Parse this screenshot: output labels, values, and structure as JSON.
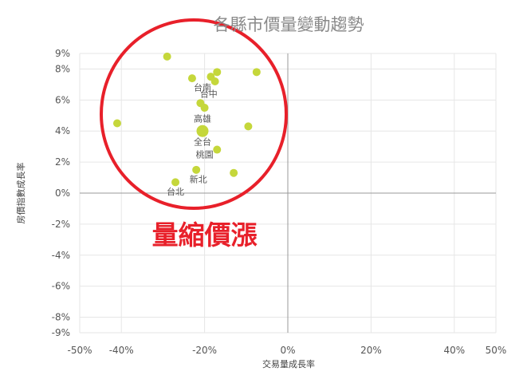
{
  "chart_data": {
    "type": "scatter",
    "title": "各縣市價量變動趨勢",
    "xlabel": "交易量成長率",
    "ylabel": "房價指數成長率",
    "xlim": [
      -0.5,
      0.5
    ],
    "ylim": [
      -0.09,
      0.09
    ],
    "x_ticks": [
      {
        "value": -0.5,
        "label": "-50%"
      },
      {
        "value": -0.4,
        "label": "-40%"
      },
      {
        "value": -0.2,
        "label": "-20%"
      },
      {
        "value": 0.0,
        "label": "0%"
      },
      {
        "value": 0.2,
        "label": "20%"
      },
      {
        "value": 0.4,
        "label": "40%"
      },
      {
        "value": 0.5,
        "label": "50%"
      }
    ],
    "y_ticks": [
      {
        "value": 0.09,
        "label": "9%"
      },
      {
        "value": 0.08,
        "label": "8%"
      },
      {
        "value": 0.06,
        "label": "6%"
      },
      {
        "value": 0.04,
        "label": "4%"
      },
      {
        "value": 0.02,
        "label": "2%"
      },
      {
        "value": 0.0,
        "label": "0%"
      },
      {
        "value": -0.02,
        "label": "-2%"
      },
      {
        "value": -0.04,
        "label": "-4%"
      },
      {
        "value": -0.06,
        "label": "-6%"
      },
      {
        "value": -0.08,
        "label": "-8%"
      },
      {
        "value": -0.09,
        "label": "-9%"
      }
    ],
    "grid": true,
    "marker_color": "#c5d73b",
    "points": [
      {
        "x": -0.29,
        "y": 0.088
      },
      {
        "x": -0.23,
        "y": 0.074
      },
      {
        "x": -0.17,
        "y": 0.078
      },
      {
        "x": -0.075,
        "y": 0.078
      },
      {
        "x": -0.185,
        "y": 0.075
      },
      {
        "x": -0.175,
        "y": 0.072
      },
      {
        "x": -0.21,
        "y": 0.058
      },
      {
        "x": -0.2,
        "y": 0.055
      },
      {
        "x": -0.41,
        "y": 0.045
      },
      {
        "x": -0.095,
        "y": 0.043
      },
      {
        "x": -0.205,
        "y": 0.04,
        "size": "large"
      },
      {
        "x": -0.17,
        "y": 0.028
      },
      {
        "x": -0.22,
        "y": 0.015
      },
      {
        "x": -0.13,
        "y": 0.013
      },
      {
        "x": -0.27,
        "y": 0.007
      }
    ],
    "point_labels": [
      {
        "text": "台南",
        "x": -0.205,
        "y": 0.066
      },
      {
        "text": "台中",
        "x": -0.19,
        "y": 0.062
      },
      {
        "text": "高雄",
        "x": -0.205,
        "y": 0.046
      },
      {
        "text": "全台",
        "x": -0.205,
        "y": 0.031
      },
      {
        "text": "桃園",
        "x": -0.2,
        "y": 0.023
      },
      {
        "text": "新北",
        "x": -0.215,
        "y": 0.007
      },
      {
        "text": "台北",
        "x": -0.27,
        "y": -0.001
      }
    ],
    "annotation": {
      "text": "量縮價漲",
      "x": -0.2,
      "y": -0.033,
      "circle_color": "#e8202a"
    }
  }
}
